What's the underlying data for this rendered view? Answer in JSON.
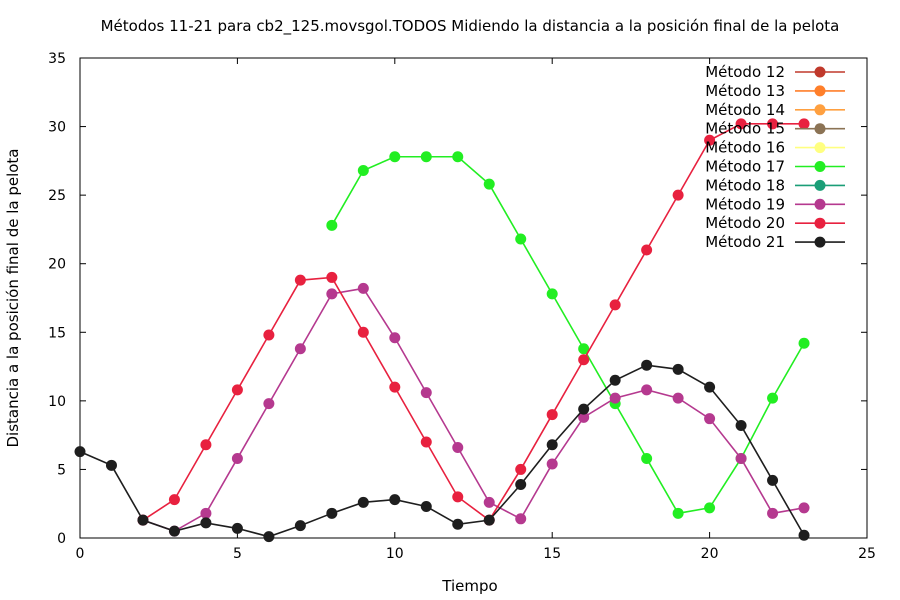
{
  "chart_data": {
    "type": "line",
    "title": "Métodos 11-21 para cb2_125.movsgol.TODOS Midiendo la distancia a la posición final de la pelota",
    "xlabel": "Tiempo",
    "ylabel": "Distancia a la posición final de la pelota",
    "xlim": [
      0,
      25
    ],
    "ylim": [
      0,
      35
    ],
    "xticks": [
      0,
      5,
      10,
      15,
      20,
      25
    ],
    "yticks": [
      0,
      5,
      10,
      15,
      20,
      25,
      30,
      35
    ],
    "grid": false,
    "legend_position": "top-right",
    "series": [
      {
        "name": "Método 12",
        "color": "#c0392b",
        "x": [],
        "y": []
      },
      {
        "name": "Método 13",
        "color": "#ff7f2a",
        "x": [],
        "y": []
      },
      {
        "name": "Método 14",
        "color": "#ffa040",
        "x": [],
        "y": []
      },
      {
        "name": "Método 15",
        "color": "#8b7355",
        "x": [],
        "y": []
      },
      {
        "name": "Método 16",
        "color": "#ffff80",
        "x": [],
        "y": []
      },
      {
        "name": "Método 17",
        "color": "#22ee22",
        "x": [
          8,
          9,
          10,
          11,
          12,
          13,
          14,
          15,
          16,
          17,
          18,
          19,
          20,
          21,
          22,
          23
        ],
        "y": [
          22.8,
          26.8,
          27.8,
          27.8,
          27.8,
          25.8,
          21.8,
          17.8,
          13.8,
          9.8,
          5.8,
          1.8,
          2.2,
          5.8,
          10.2,
          14.2
        ]
      },
      {
        "name": "Método 18",
        "color": "#1a9e77",
        "x": [],
        "y": []
      },
      {
        "name": "Método 19",
        "color": "#b5398f",
        "x": [
          2,
          3,
          4,
          5,
          6,
          7,
          8,
          9,
          10,
          11,
          12,
          13,
          14,
          15,
          16,
          17,
          18,
          19,
          20,
          21,
          22,
          23
        ],
        "y": [
          1.3,
          0.5,
          1.8,
          5.8,
          9.8,
          13.8,
          17.8,
          18.2,
          14.6,
          10.6,
          6.6,
          2.6,
          1.4,
          5.4,
          8.8,
          10.2,
          10.8,
          10.2,
          8.7,
          5.8,
          1.8,
          2.2
        ]
      },
      {
        "name": "Método 20",
        "color": "#e8213f",
        "x": [
          2,
          3,
          4,
          5,
          6,
          7,
          8,
          9,
          10,
          11,
          12,
          13,
          14,
          15,
          16,
          17,
          18,
          19,
          20,
          21,
          22,
          23
        ],
        "y": [
          1.3,
          2.8,
          6.8,
          10.8,
          14.8,
          18.8,
          19.0,
          15.0,
          11.0,
          7.0,
          3.0,
          1.3,
          5.0,
          9.0,
          13.0,
          17.0,
          21.0,
          25.0,
          29.0,
          30.2,
          30.2,
          30.2
        ]
      },
      {
        "name": "Método 21",
        "color": "#1e1e1e",
        "x": [
          0,
          1,
          2,
          3,
          4,
          5,
          6,
          7,
          8,
          9,
          10,
          11,
          12,
          13,
          14,
          15,
          16,
          17,
          18,
          19,
          20,
          21,
          22,
          23
        ],
        "y": [
          6.3,
          5.3,
          1.3,
          0.5,
          1.1,
          0.7,
          0.1,
          0.9,
          1.8,
          2.6,
          2.8,
          2.3,
          1.0,
          1.3,
          3.9,
          6.8,
          9.4,
          11.5,
          12.6,
          12.3,
          11.0,
          8.2,
          4.2,
          0.2
        ]
      }
    ]
  }
}
